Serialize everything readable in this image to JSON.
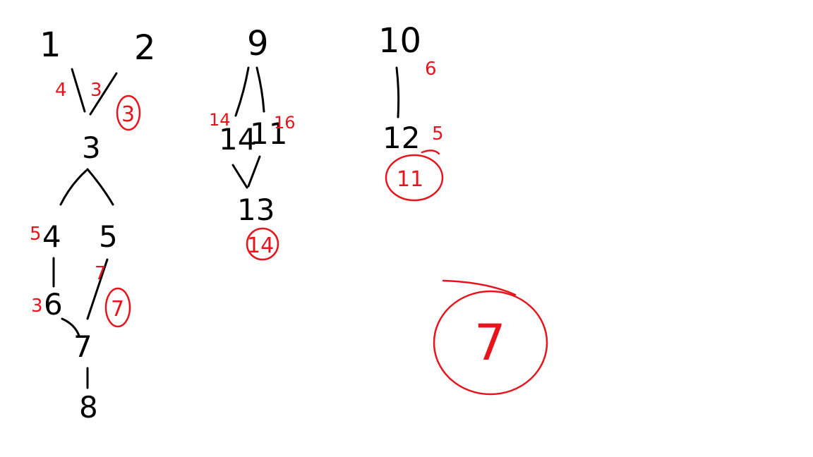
{
  "colors": {
    "ink": "#000000",
    "annotation": "#e8141c",
    "background": "#ffffff"
  },
  "nodes": {
    "n1": "1",
    "n2": "2",
    "n3": "3",
    "n4": "4",
    "n5": "5",
    "n6": "6",
    "n7": "7",
    "n8": "8",
    "n9": "9",
    "n10": "10",
    "n11": "11",
    "n12": "12",
    "n13": "13",
    "n14": "14"
  },
  "annotations": {
    "edge_1_3": "4",
    "edge_2_3": "3",
    "node_4_left": "5",
    "node_6_left": "3",
    "edge_5_7": "7",
    "edge_9_14": "14",
    "edge_9_11": "16",
    "node_10_right": "6",
    "node_12_right": "5"
  },
  "circled": {
    "tree1_top": "3",
    "tree1_bottom": "7",
    "tree2": "14",
    "tree3": "11",
    "answer": "7"
  }
}
